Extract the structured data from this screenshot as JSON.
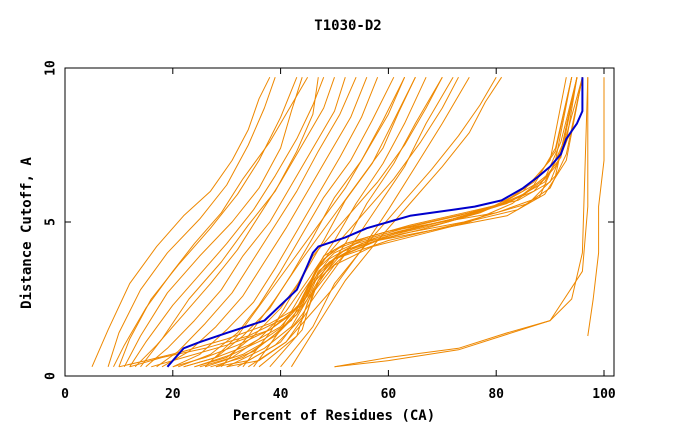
{
  "chart_data": {
    "type": "line",
    "title": "T1030-D2",
    "xlabel": "Percent of Residues (CA)",
    "ylabel": "Distance Cutoff, A",
    "xlim": [
      0,
      100
    ],
    "ylim": [
      0,
      10
    ],
    "x_ticks": [
      "0",
      "20",
      "40",
      "60",
      "80",
      "100"
    ],
    "y_ticks": [
      "0",
      "5",
      "10"
    ],
    "grid": false,
    "legend": "none",
    "colors": {
      "others": "#ee8800",
      "highlight": "#0000cc"
    },
    "series": [
      {
        "highlight": true,
        "x": [
          19,
          20,
          22,
          25,
          30,
          37,
          40,
          43,
          44,
          45,
          46,
          47,
          52,
          56,
          60,
          64,
          68,
          72,
          76,
          81,
          85,
          88,
          90,
          92,
          93,
          95,
          96,
          96
        ],
        "y": [
          0.3,
          0.5,
          0.9,
          1.1,
          1.4,
          1.8,
          2.3,
          2.8,
          3.2,
          3.6,
          4.0,
          4.2,
          4.5,
          4.8,
          5.0,
          5.2,
          5.3,
          5.4,
          5.5,
          5.7,
          6.1,
          6.5,
          6.8,
          7.2,
          7.7,
          8.2,
          8.6,
          9.7
        ]
      },
      {
        "x": [
          5,
          8,
          12,
          17,
          22,
          27,
          31,
          34,
          36,
          38
        ],
        "y": [
          0.3,
          1.5,
          3.0,
          4.2,
          5.2,
          6.0,
          7.0,
          8.0,
          9.0,
          9.7
        ]
      },
      {
        "x": [
          10,
          12,
          16,
          21,
          27,
          32,
          36,
          40,
          43
        ],
        "y": [
          0.3,
          1.2,
          2.5,
          3.6,
          4.8,
          5.9,
          7.0,
          8.4,
          9.7
        ]
      },
      {
        "x": [
          9,
          11,
          15,
          20,
          24,
          29,
          33,
          38,
          42,
          45
        ],
        "y": [
          0.3,
          1.0,
          2.2,
          3.4,
          4.3,
          5.3,
          6.4,
          7.6,
          8.8,
          9.7
        ]
      },
      {
        "x": [
          12,
          15,
          20,
          25,
          30,
          35,
          39,
          43,
          46,
          48
        ],
        "y": [
          0.3,
          1.1,
          2.3,
          3.3,
          4.3,
          5.4,
          6.5,
          7.7,
          8.8,
          9.7
        ]
      },
      {
        "x": [
          13,
          17,
          22,
          27,
          32,
          36,
          40,
          44,
          48,
          50
        ],
        "y": [
          0.3,
          1.0,
          2.0,
          3.0,
          4.1,
          5.2,
          6.3,
          7.5,
          8.7,
          9.7
        ]
      },
      {
        "x": [
          15,
          19,
          24,
          29,
          33,
          38,
          42,
          46,
          50,
          52
        ],
        "y": [
          0.3,
          0.9,
          1.8,
          2.8,
          3.9,
          5.0,
          6.2,
          7.4,
          8.6,
          9.7
        ]
      },
      {
        "x": [
          17,
          21,
          26,
          31,
          35,
          39,
          43,
          47,
          51,
          54
        ],
        "y": [
          0.3,
          0.8,
          1.7,
          2.7,
          3.8,
          4.9,
          6.0,
          7.3,
          8.5,
          9.7
        ]
      },
      {
        "x": [
          18,
          23,
          28,
          33,
          37,
          41,
          45,
          49,
          53,
          56
        ],
        "y": [
          0.3,
          0.8,
          1.6,
          2.6,
          3.7,
          4.8,
          6.0,
          7.2,
          8.4,
          9.7
        ]
      },
      {
        "x": [
          20,
          25,
          30,
          35,
          39,
          43,
          47,
          51,
          55,
          58
        ],
        "y": [
          0.3,
          0.7,
          1.5,
          2.4,
          3.5,
          4.7,
          5.9,
          7.1,
          8.4,
          9.7
        ]
      },
      {
        "x": [
          21,
          27,
          32,
          36,
          40,
          44,
          48,
          53,
          57,
          61
        ],
        "y": [
          0.3,
          0.7,
          1.4,
          2.3,
          3.4,
          4.6,
          5.8,
          7.0,
          8.3,
          9.7
        ]
      },
      {
        "x": [
          22,
          28,
          33,
          38,
          42,
          46,
          50,
          55,
          59,
          63
        ],
        "y": [
          0.3,
          0.6,
          1.3,
          2.2,
          3.3,
          4.5,
          5.8,
          7.0,
          8.3,
          9.7
        ]
      },
      {
        "x": [
          24,
          30,
          35,
          40,
          44,
          48,
          52,
          57,
          61,
          65
        ],
        "y": [
          0.3,
          0.6,
          1.3,
          2.2,
          3.2,
          4.4,
          5.7,
          6.9,
          8.3,
          9.7
        ]
      },
      {
        "x": [
          25,
          31,
          36,
          41,
          45,
          50,
          54,
          59,
          63,
          67
        ],
        "y": [
          0.3,
          0.6,
          1.2,
          2.1,
          3.1,
          4.4,
          5.6,
          6.9,
          8.2,
          9.7
        ]
      },
      {
        "x": [
          27,
          33,
          38,
          43,
          47,
          52,
          56,
          61,
          65,
          70
        ],
        "y": [
          0.3,
          0.6,
          1.2,
          2.0,
          3.0,
          4.3,
          5.6,
          6.9,
          8.2,
          9.7
        ]
      },
      {
        "x": [
          28,
          34,
          40,
          44,
          48,
          53,
          58,
          63,
          67,
          72
        ],
        "y": [
          0.3,
          0.5,
          1.1,
          2.0,
          3.0,
          4.2,
          5.5,
          6.8,
          8.2,
          9.7
        ]
      },
      {
        "x": [
          30,
          36,
          41,
          45,
          50,
          55,
          60,
          65,
          70,
          75
        ],
        "y": [
          0.3,
          0.5,
          1.1,
          1.9,
          2.9,
          4.1,
          5.4,
          6.8,
          8.2,
          9.7
        ]
      },
      {
        "x": [
          8,
          10,
          14,
          19,
          25,
          30,
          34,
          37,
          39
        ],
        "y": [
          0.3,
          1.4,
          2.8,
          4.0,
          5.1,
          6.2,
          7.5,
          8.7,
          9.7
        ]
      },
      {
        "x": [
          11,
          14,
          19,
          25,
          31,
          36,
          40,
          42,
          44
        ],
        "y": [
          0.3,
          1.3,
          2.7,
          3.9,
          5.0,
          6.1,
          7.4,
          8.6,
          9.7
        ]
      },
      {
        "x": [
          14,
          18,
          23,
          29,
          34,
          39,
          43,
          46,
          47
        ],
        "y": [
          0.3,
          1.2,
          2.5,
          3.7,
          4.9,
          6.0,
          7.3,
          8.5,
          9.7
        ]
      },
      {
        "x": [
          20,
          26,
          32,
          38,
          42,
          45,
          46,
          48,
          52,
          60,
          70,
          80,
          88,
          91,
          94
        ],
        "y": [
          0.3,
          0.6,
          1.0,
          1.5,
          2.0,
          2.6,
          3.2,
          3.9,
          4.3,
          4.7,
          5.0,
          5.3,
          5.8,
          7.0,
          9.7
        ]
      },
      {
        "x": [
          22,
          28,
          34,
          40,
          43,
          45,
          47,
          50,
          56,
          64,
          74,
          84,
          90,
          93,
          95
        ],
        "y": [
          0.3,
          0.6,
          1.0,
          1.6,
          2.2,
          2.9,
          3.6,
          4.1,
          4.5,
          4.9,
          5.3,
          5.7,
          6.3,
          7.6,
          9.7
        ]
      },
      {
        "x": [
          24,
          31,
          37,
          42,
          44,
          46,
          48,
          52,
          60,
          70,
          80,
          87,
          91,
          94,
          96
        ],
        "y": [
          0.3,
          0.7,
          1.2,
          1.8,
          2.5,
          3.2,
          3.8,
          4.3,
          4.7,
          5.1,
          5.5,
          6.0,
          6.8,
          8.0,
          9.7
        ]
      },
      {
        "x": [
          26,
          33,
          39,
          43,
          45,
          47,
          50,
          55,
          63,
          73,
          83,
          89,
          92,
          95
        ],
        "y": [
          0.3,
          0.7,
          1.3,
          2.0,
          2.8,
          3.5,
          4.0,
          4.4,
          4.8,
          5.2,
          5.7,
          6.3,
          7.3,
          9.7
        ]
      },
      {
        "x": [
          28,
          35,
          40,
          44,
          46,
          49,
          54,
          62,
          72,
          82,
          88,
          92,
          95
        ],
        "y": [
          0.3,
          0.8,
          1.5,
          2.3,
          3.1,
          3.8,
          4.3,
          4.7,
          5.1,
          5.6,
          6.2,
          7.1,
          9.7
        ]
      },
      {
        "x": [
          30,
          37,
          42,
          45,
          47,
          51,
          58,
          67,
          77,
          85,
          90,
          93,
          96
        ],
        "y": [
          0.3,
          0.9,
          1.6,
          2.5,
          3.3,
          4.0,
          4.5,
          4.9,
          5.3,
          5.9,
          6.6,
          7.8,
          9.7
        ]
      },
      {
        "x": [
          32,
          39,
          44,
          46,
          49,
          55,
          63,
          72,
          81,
          87,
          91,
          94
        ],
        "y": [
          0.3,
          1.0,
          1.9,
          2.8,
          3.7,
          4.3,
          4.7,
          5.1,
          5.6,
          6.3,
          7.3,
          9.7
        ]
      },
      {
        "x": [
          34,
          41,
          45,
          47,
          51,
          58,
          67,
          77,
          85,
          90,
          93
        ],
        "y": [
          0.3,
          1.1,
          2.1,
          3.1,
          3.9,
          4.4,
          4.8,
          5.3,
          6.0,
          7.0,
          9.7
        ]
      },
      {
        "x": [
          36,
          43,
          45,
          48,
          53,
          61,
          71,
          80,
          87,
          91,
          94
        ],
        "y": [
          0.3,
          1.3,
          2.4,
          3.3,
          4.1,
          4.6,
          5.0,
          5.5,
          6.2,
          7.4,
          9.7
        ]
      },
      {
        "x": [
          38,
          44,
          46,
          50,
          57,
          66,
          75,
          83,
          89,
          92,
          95
        ],
        "y": [
          0.3,
          1.5,
          2.7,
          3.6,
          4.2,
          4.6,
          5.0,
          5.6,
          6.4,
          7.6,
          9.7
        ]
      },
      {
        "x": [
          10,
          15,
          22,
          30,
          38,
          44,
          46,
          50,
          60,
          72,
          84,
          90,
          93,
          96
        ],
        "y": [
          0.3,
          0.5,
          0.8,
          1.2,
          1.7,
          2.3,
          3.0,
          3.8,
          4.4,
          4.9,
          5.4,
          6.1,
          7.2,
          9.7
        ]
      },
      {
        "x": [
          12,
          18,
          26,
          34,
          41,
          45,
          47,
          52,
          62,
          74,
          86,
          91,
          95
        ],
        "y": [
          0.3,
          0.6,
          0.9,
          1.3,
          1.9,
          2.6,
          3.4,
          4.1,
          4.6,
          5.0,
          5.6,
          6.5,
          9.7
        ]
      },
      {
        "x": [
          16,
          22,
          30,
          38,
          43,
          46,
          50,
          58,
          70,
          82,
          89,
          93,
          96
        ],
        "y": [
          0.3,
          0.6,
          1.0,
          1.5,
          2.2,
          3.0,
          3.8,
          4.4,
          4.8,
          5.2,
          5.9,
          7.0,
          9.7
        ]
      },
      {
        "x": [
          40,
          46,
          50,
          56,
          62,
          68,
          73,
          77,
          80
        ],
        "y": [
          0.3,
          1.6,
          3.0,
          4.3,
          5.5,
          6.7,
          7.8,
          8.8,
          9.7
        ]
      },
      {
        "x": [
          42,
          47,
          52,
          58,
          64,
          70,
          75,
          78,
          81
        ],
        "y": [
          0.3,
          1.7,
          3.1,
          4.4,
          5.6,
          6.8,
          7.9,
          8.9,
          9.7
        ]
      },
      {
        "x": [
          33,
          38,
          42,
          46,
          52,
          58,
          63,
          67,
          70
        ],
        "y": [
          0.3,
          1.4,
          2.6,
          3.9,
          5.1,
          6.3,
          7.5,
          8.7,
          9.7
        ]
      },
      {
        "x": [
          35,
          40,
          44,
          49,
          55,
          61,
          66,
          70,
          73
        ],
        "y": [
          0.3,
          1.5,
          2.7,
          4.0,
          5.2,
          6.4,
          7.6,
          8.7,
          9.7
        ]
      },
      {
        "x": [
          26,
          32,
          37,
          42,
          47,
          52,
          56,
          60,
          63
        ],
        "y": [
          0.3,
          1.3,
          2.5,
          3.7,
          4.9,
          6.1,
          7.3,
          8.5,
          9.7
        ]
      },
      {
        "x": [
          29,
          34,
          39,
          44,
          49,
          54,
          59,
          62,
          65
        ],
        "y": [
          0.3,
          1.3,
          2.5,
          3.8,
          5.0,
          6.2,
          7.4,
          8.6,
          9.7
        ]
      },
      {
        "x": [
          50,
          60,
          73,
          82,
          90,
          94,
          96,
          97
        ],
        "y": [
          0.3,
          0.6,
          0.9,
          1.4,
          1.8,
          2.5,
          4.0,
          9.7
        ]
      },
      {
        "x": [
          50,
          60,
          73,
          90,
          96,
          97,
          97
        ],
        "y": [
          0.3,
          0.5,
          0.85,
          1.8,
          3.4,
          5.5,
          9.7
        ]
      },
      {
        "x": [
          97,
          98,
          99,
          99,
          100,
          100
        ],
        "y": [
          1.3,
          2.5,
          4.0,
          5.5,
          7.0,
          9.7
        ]
      }
    ]
  }
}
